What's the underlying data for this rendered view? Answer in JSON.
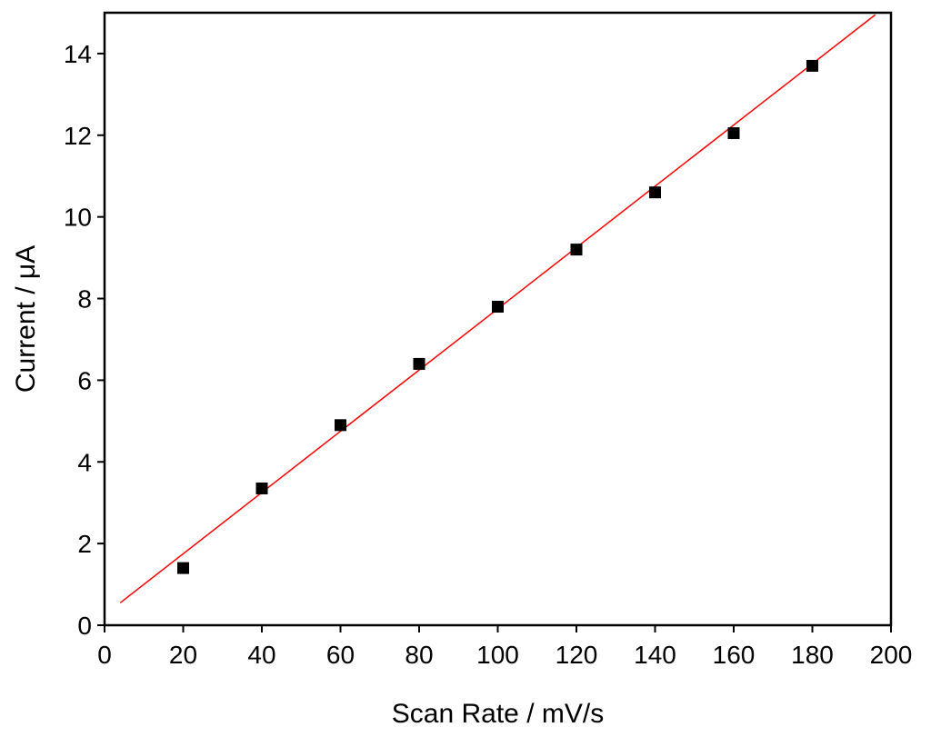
{
  "chart_data": {
    "type": "scatter",
    "xlabel": "Scan Rate / mV/s",
    "ylabel": "Current / μA",
    "xlim": [
      0,
      200
    ],
    "ylim": [
      0,
      15
    ],
    "xticks": [
      0,
      20,
      40,
      60,
      80,
      100,
      120,
      140,
      160,
      180,
      200
    ],
    "yticks": [
      0,
      2,
      4,
      6,
      8,
      10,
      12,
      14
    ],
    "grid": false,
    "series": [
      {
        "kind": "points",
        "marker": "square",
        "color": "#000000",
        "x": [
          20,
          40,
          60,
          80,
          100,
          120,
          140,
          160,
          180
        ],
        "y": [
          1.4,
          3.35,
          4.9,
          6.4,
          7.8,
          9.2,
          10.6,
          12.05,
          13.7
        ]
      },
      {
        "kind": "fit-line",
        "color": "#ff0000",
        "x": [
          4,
          196
        ],
        "y": [
          0.55,
          14.95
        ]
      }
    ]
  }
}
